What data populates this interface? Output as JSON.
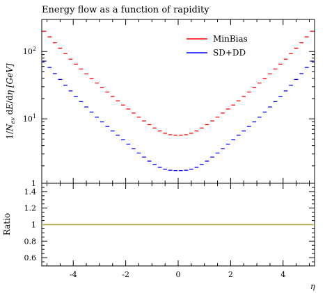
{
  "title": "Energy flow as a function of rapidity",
  "chart_data": [
    {
      "type": "line",
      "panel": "main",
      "title": "Energy flow as a function of rapidity",
      "ylabel": "1/N_ev dE/dη [GeV]",
      "ylabel_parts": {
        "prefix": "1/",
        "n": "N",
        "n_sub": "ev",
        "mid": " d",
        "e": "E",
        "slash": "/d",
        "eta": "η",
        "unit": " [GeV]"
      },
      "yscale": "log",
      "ylim": [
        1.1,
        300
      ],
      "xlim": [
        -5.2,
        5.2
      ],
      "yticks": [
        {
          "value": 10,
          "base": "10",
          "exp": "1"
        },
        {
          "value": 100,
          "base": "10",
          "exp": "2"
        }
      ],
      "legend_placement": "top-right",
      "grid": false,
      "x": [
        -5.1,
        -4.9,
        -4.7,
        -4.5,
        -4.3,
        -4.1,
        -3.9,
        -3.7,
        -3.5,
        -3.3,
        -3.1,
        -2.9,
        -2.7,
        -2.5,
        -2.3,
        -2.1,
        -1.9,
        -1.7,
        -1.5,
        -1.3,
        -1.1,
        -0.9,
        -0.7,
        -0.5,
        -0.3,
        -0.1,
        0.1,
        0.3,
        0.5,
        0.7,
        0.9,
        1.1,
        1.3,
        1.5,
        1.7,
        1.9,
        2.1,
        2.3,
        2.5,
        2.7,
        2.9,
        3.1,
        3.3,
        3.5,
        3.7,
        3.9,
        4.1,
        4.3,
        4.5,
        4.7,
        4.9,
        5.1
      ],
      "series": [
        {
          "name": "MinBias",
          "color": "#ff0000",
          "values": [
            200,
            165,
            135,
            112,
            93,
            77,
            65,
            55,
            46.5,
            39.5,
            34,
            29,
            25,
            21.5,
            18.5,
            16,
            14,
            12.2,
            10.6,
            9.3,
            8.2,
            7.3,
            6.6,
            6.1,
            5.8,
            5.7,
            5.7,
            5.8,
            6.1,
            6.6,
            7.3,
            8.2,
            9.3,
            10.6,
            12.2,
            14,
            16,
            18.5,
            21.5,
            25,
            29,
            34,
            39.5,
            46.5,
            55,
            65,
            77,
            93,
            112,
            135,
            165,
            200
          ]
        },
        {
          "name": "SD+DD",
          "color": "#0000ff",
          "values": [
            72,
            58,
            47,
            38.5,
            31.5,
            26,
            21.5,
            18,
            15,
            12.6,
            10.6,
            9,
            7.7,
            6.6,
            5.7,
            4.9,
            4.2,
            3.6,
            3.1,
            2.7,
            2.35,
            2.1,
            1.9,
            1.78,
            1.72,
            1.7,
            1.7,
            1.72,
            1.78,
            1.9,
            2.1,
            2.35,
            2.7,
            3.1,
            3.6,
            4.2,
            4.9,
            5.7,
            6.6,
            7.7,
            9,
            10.6,
            12.6,
            15,
            18,
            21.5,
            26,
            31.5,
            38.5,
            47,
            58,
            72
          ]
        }
      ]
    },
    {
      "type": "line",
      "panel": "ratio",
      "ylabel": "Ratio",
      "xlabel": "η",
      "xlim": [
        -5.2,
        5.2
      ],
      "ylim": [
        0.5,
        1.5
      ],
      "xticks": [
        "-4",
        "-2",
        "0",
        "2",
        "4"
      ],
      "xtick_values": [
        -4,
        -2,
        0,
        2,
        4
      ],
      "yticks": [
        "0.6",
        "0.8",
        "1",
        "1.2",
        "1.4"
      ],
      "ytick_values": [
        0.6,
        0.8,
        1,
        1.2,
        1.4
      ],
      "top_label": "1",
      "series": [
        {
          "name": "",
          "color": "#b5a642",
          "values": [
            1,
            1
          ]
        }
      ]
    }
  ]
}
